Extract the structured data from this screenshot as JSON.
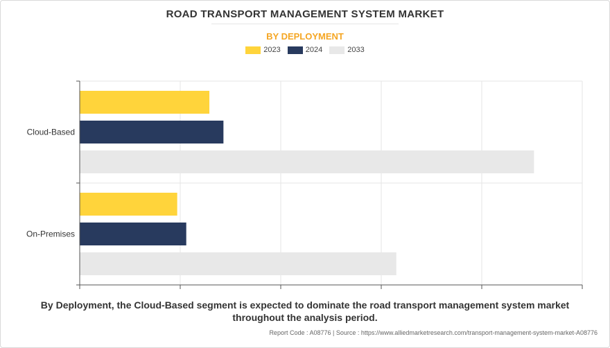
{
  "header": {
    "title": "ROAD TRANSPORT MANAGEMENT SYSTEM MARKET",
    "subtitle": "BY DEPLOYMENT"
  },
  "legend": [
    {
      "label": "2023",
      "color": "#FFD43B"
    },
    {
      "label": "2024",
      "color": "#283A5E"
    },
    {
      "label": "2033",
      "color": "#E8E8E8"
    }
  ],
  "chart_data": {
    "type": "bar",
    "orientation": "horizontal",
    "categories": [
      "Cloud-Based",
      "On-Premises"
    ],
    "series": [
      {
        "name": "2023",
        "color": "#FFD43B",
        "values": [
          1.29,
          0.97
        ]
      },
      {
        "name": "2024",
        "color": "#283A5E",
        "values": [
          1.43,
          1.06
        ]
      },
      {
        "name": "2033",
        "color": "#E8E8E8",
        "values": [
          4.52,
          3.15
        ]
      }
    ],
    "xlim": [
      0,
      5
    ],
    "grid": true,
    "legend_position": "top-center",
    "title": "ROAD TRANSPORT MANAGEMENT SYSTEM MARKET",
    "subtitle": "BY DEPLOYMENT"
  },
  "caption": "By Deployment, the Cloud-Based segment is expected to dominate the road transport management system market throughout the analysis period.",
  "footer": "Report Code : A08776  |  Source : https://www.alliedmarketresearch.com/transport-management-system-market-A08776"
}
